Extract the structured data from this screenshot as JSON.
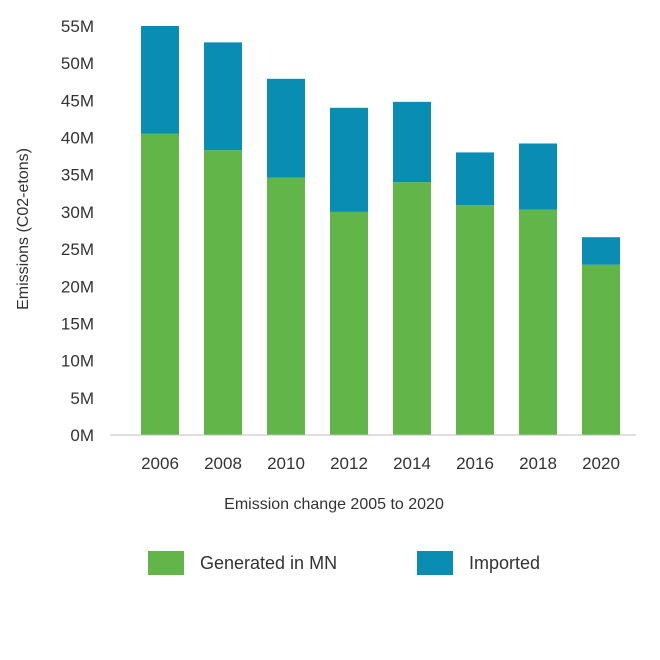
{
  "chart_data": {
    "type": "bar",
    "stacked": true,
    "categories": [
      "2006",
      "2008",
      "2010",
      "2012",
      "2014",
      "2016",
      "2018",
      "2020"
    ],
    "series": [
      {
        "name": "Generated in MN",
        "color": "#62b548",
        "values": [
          40.5,
          38.3,
          34.6,
          30.0,
          34.0,
          30.9,
          30.3,
          22.9
        ]
      },
      {
        "name": "Imported",
        "color": "#0a8db3",
        "values": [
          14.5,
          14.5,
          13.3,
          14.0,
          10.8,
          7.1,
          8.9,
          3.7
        ]
      }
    ],
    "ylim": [
      0,
      55
    ],
    "yticks": [
      "0M",
      "5M",
      "10M",
      "15M",
      "20M",
      "25M",
      "30M",
      "35M",
      "40M",
      "45M",
      "50M",
      "55M"
    ],
    "ytick_values": [
      0,
      5,
      10,
      15,
      20,
      25,
      30,
      35,
      40,
      45,
      50,
      55
    ],
    "xlabel": "Emission change 2005 to 2020",
    "ylabel": "Emissions (C02-etons)",
    "grid": false,
    "legend": "bottom"
  }
}
